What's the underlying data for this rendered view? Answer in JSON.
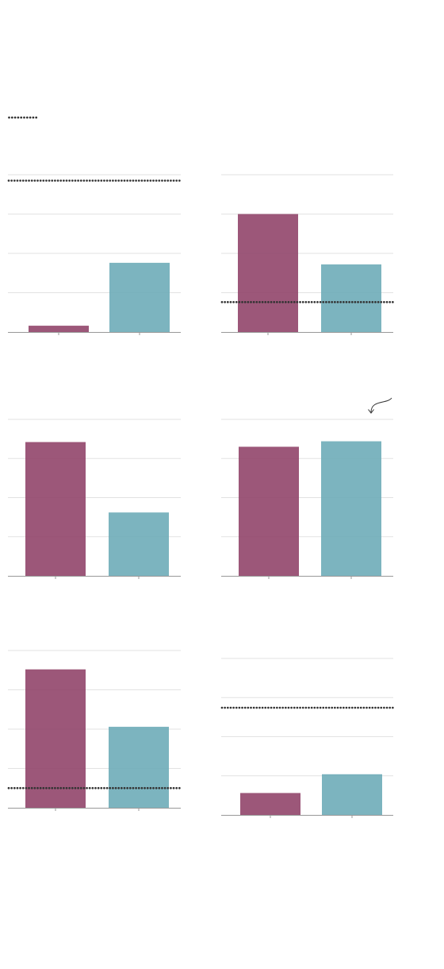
{
  "colors": {
    "series_a": "#8e4066",
    "series_b": "#6aaab6",
    "reference": "#333333",
    "grid": "#e2e2e2",
    "axis": "#999999"
  },
  "legend": {
    "reference_line_style": "dotted"
  },
  "chart_data": [
    {
      "type": "bar",
      "categories": [
        "",
        ""
      ],
      "values": [
        0.16,
        1.76
      ],
      "ylim": [
        0,
        4
      ],
      "reference_line": 3.85,
      "grid": true
    },
    {
      "type": "bar",
      "categories": [
        "",
        ""
      ],
      "values": [
        3.0,
        1.72
      ],
      "ylim": [
        0,
        4
      ],
      "reference_line": 0.76,
      "grid": true
    },
    {
      "type": "bar",
      "categories": [
        "",
        ""
      ],
      "values": [
        3.42,
        1.62
      ],
      "ylim": [
        0,
        4
      ],
      "reference_line": null,
      "grid": true
    },
    {
      "type": "bar",
      "categories": [
        "",
        ""
      ],
      "values": [
        3.3,
        3.44
      ],
      "ylim": [
        0,
        4
      ],
      "reference_line": null,
      "grid": true,
      "annotation": "arrow"
    },
    {
      "type": "bar",
      "categories": [
        "",
        ""
      ],
      "values": [
        3.52,
        2.06
      ],
      "ylim": [
        0,
        4
      ],
      "reference_line": 0.5,
      "grid": true
    },
    {
      "type": "bar",
      "categories": [
        "",
        ""
      ],
      "values": [
        0.56,
        1.04
      ],
      "ylim": [
        0,
        4
      ],
      "reference_line": 2.74,
      "grid": true
    }
  ]
}
